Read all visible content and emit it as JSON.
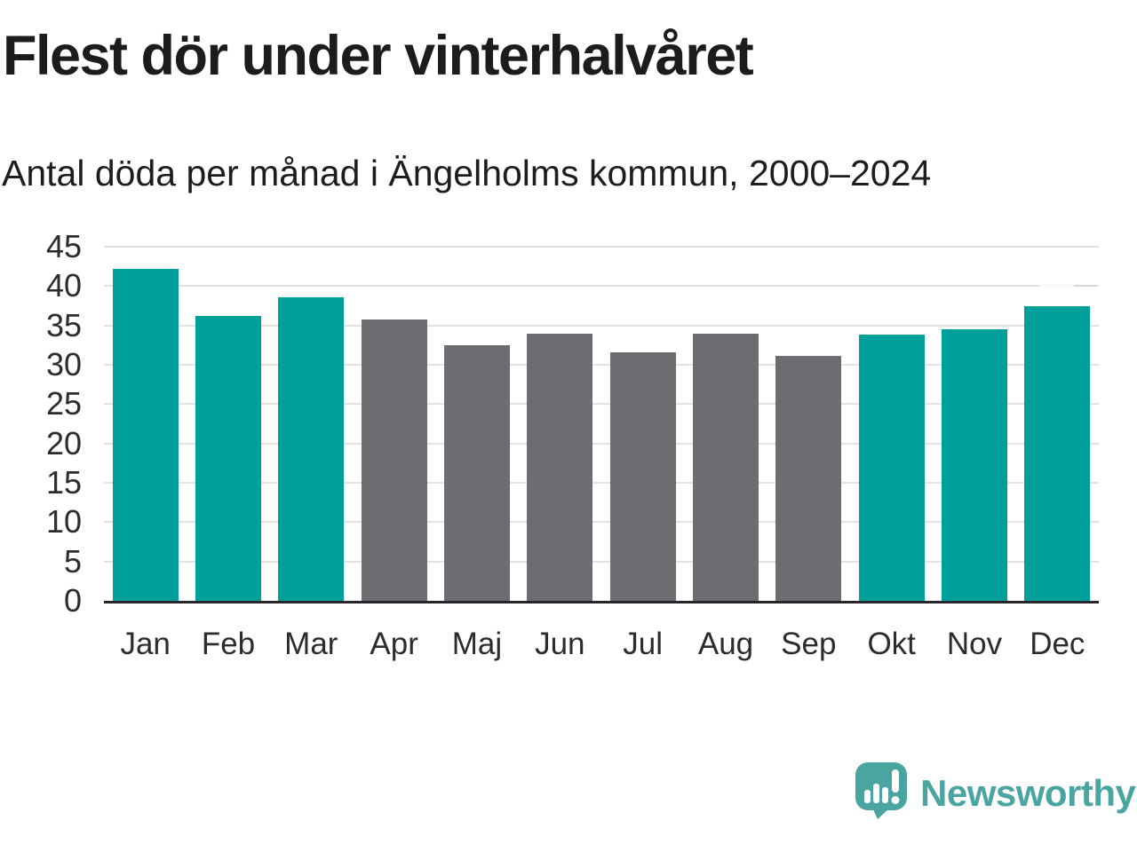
{
  "title": "Flest dör under vinterhalvåret",
  "subtitle": "Antal döda per månad i Ängelholms kommun, 2000–2024",
  "branding": {
    "logo_text": "Newsworthy",
    "logo_icon": "speech-bubble-with-bar-chart-and-exclamation"
  },
  "colors": {
    "highlight_teal": "#00a09a",
    "muted_gray": "#6c6c71",
    "gridline": "#e3e3e3",
    "axis_line": "#26262b",
    "text": "#2c2c2c",
    "logo_teal": "#4aa5a1"
  },
  "chart_data": {
    "type": "bar",
    "categories": [
      "Jan",
      "Feb",
      "Mar",
      "Apr",
      "Maj",
      "Jun",
      "Jul",
      "Aug",
      "Sep",
      "Okt",
      "Nov",
      "Dec"
    ],
    "values": [
      42.2,
      36.2,
      38.6,
      35.7,
      32.5,
      33.9,
      31.6,
      33.9,
      31.1,
      33.8,
      34.5,
      37.5
    ],
    "highlighted": [
      true,
      true,
      true,
      false,
      false,
      false,
      false,
      false,
      false,
      true,
      true,
      true
    ],
    "title": "",
    "xlabel": "",
    "ylabel": "",
    "ylim": [
      0,
      45
    ],
    "yticks": [
      45,
      40,
      35,
      30,
      25,
      20,
      15,
      10,
      5,
      0
    ],
    "grid": true,
    "legend": "none"
  }
}
